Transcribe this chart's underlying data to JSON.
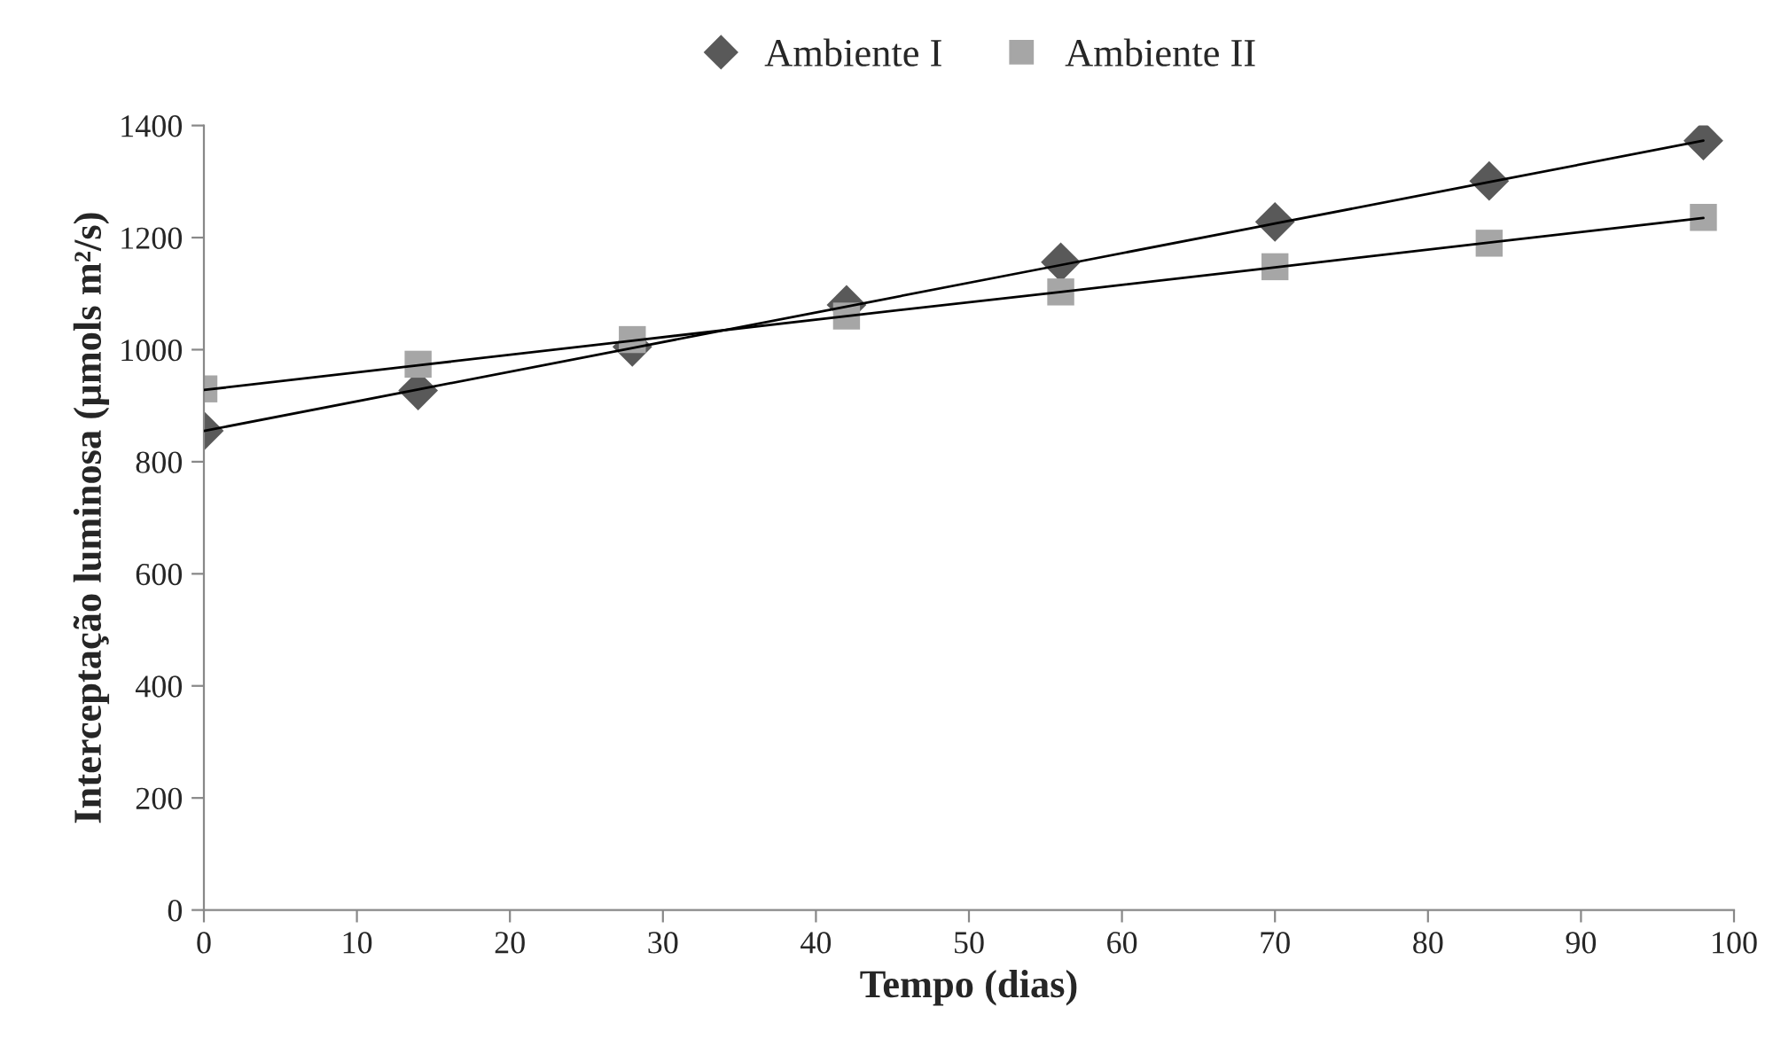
{
  "chart_data": {
    "type": "scatter",
    "xlabel": "Tempo (dias)",
    "ylabel": "Interceptação luminosa (µmols m²/s)",
    "x": [
      0,
      14,
      28,
      42,
      56,
      70,
      84,
      98
    ],
    "series": [
      {
        "name": "Ambiente I",
        "color": "#595959",
        "marker": "diamond",
        "values": [
          855,
          927,
          1005,
          1080,
          1156,
          1228,
          1301,
          1373
        ]
      },
      {
        "name": "Ambiente II",
        "color": "#a6a6a6",
        "marker": "square",
        "values": [
          930,
          974,
          1018,
          1060,
          1103,
          1148,
          1190,
          1236
        ]
      },
      {
        "type": "line",
        "color": "#000000",
        "marker": "none",
        "values": [
          855,
          929,
          1003,
          1077,
          1151,
          1225,
          1299,
          1373
        ]
      },
      {
        "type": "line",
        "color": "#000000",
        "marker": "none",
        "values": [
          928,
          972,
          1016,
          1060,
          1103,
          1147,
          1191,
          1235
        ]
      }
    ],
    "xlim": [
      0,
      100
    ],
    "xticks": [
      0,
      10,
      20,
      30,
      40,
      50,
      60,
      70,
      80,
      90,
      100
    ],
    "ylim": [
      0,
      1400
    ],
    "yticks": [
      0,
      200,
      400,
      600,
      800,
      1000,
      1200,
      1400
    ],
    "grid": false,
    "legend": "top"
  }
}
